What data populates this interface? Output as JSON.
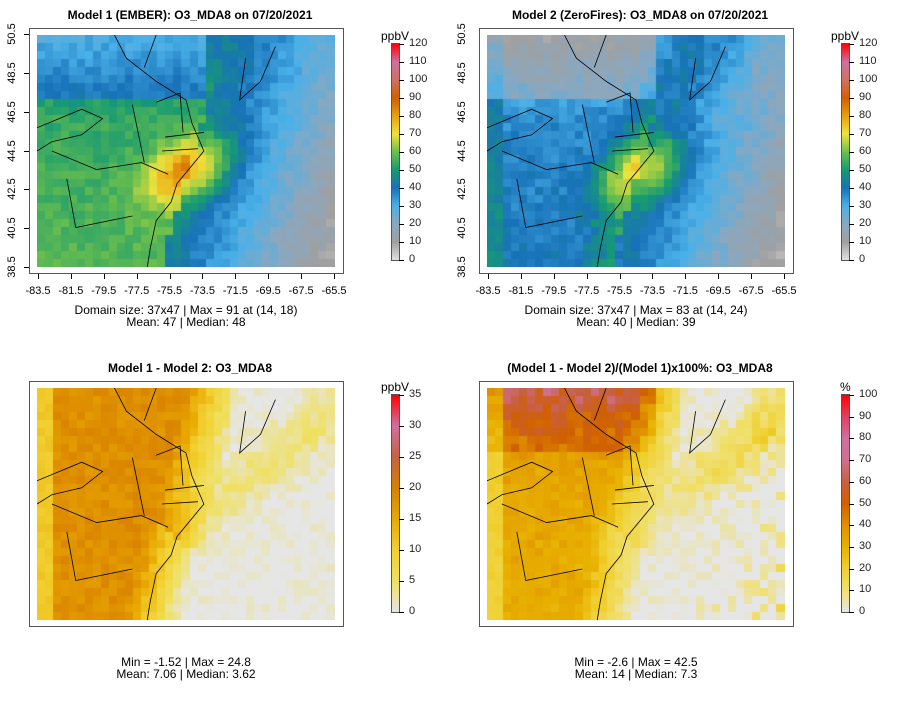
{
  "panels": [
    {
      "title": "Model 1 (EMBER): O3_MDA8 on 07/20/2021",
      "unit": "ppbV",
      "kind": "m1",
      "colorbar": {
        "ticks": [
          "0",
          "10",
          "20",
          "30",
          "40",
          "50",
          "60",
          "70",
          "80",
          "90",
          "100",
          "110",
          "120"
        ],
        "max": 120
      },
      "stats": [
        "Domain size: 37x47 | Max = 91 at (14, 18)",
        "Mean: 47 |  Median: 48"
      ],
      "axes": true
    },
    {
      "title": "Model 2 (ZeroFires): O3_MDA8 on 07/20/2021",
      "unit": "ppbV",
      "kind": "m2",
      "colorbar": {
        "ticks": [
          "0",
          "10",
          "20",
          "30",
          "40",
          "50",
          "60",
          "70",
          "80",
          "90",
          "100",
          "110",
          "120"
        ],
        "max": 120
      },
      "stats": [
        "Domain size: 37x47 | Max = 83 at (14, 24)",
        "Mean: 40 |  Median: 39"
      ],
      "axes": true
    },
    {
      "title": "Model 1 - Model 2: O3_MDA8",
      "unit": "ppbV",
      "kind": "diff",
      "colorbar": {
        "ticks": [
          "0",
          "5",
          "10",
          "15",
          "20",
          "25",
          "30",
          "35"
        ],
        "max": 35
      },
      "stats": [
        "Min = -1.52 | Max = 24.8",
        "Mean: 7.06 |  Median: 3.62"
      ],
      "axes": false
    },
    {
      "title": "(Model 1 - Model 2)/(Model 1)x100%: O3_MDA8",
      "unit": "%",
      "kind": "pct",
      "colorbar": {
        "ticks": [
          "0",
          "10",
          "20",
          "30",
          "40",
          "50",
          "60",
          "70",
          "80",
          "90",
          "100"
        ],
        "max": 100
      },
      "stats": [
        "Min = -2.6 | Max = 42.5",
        "Mean: 14 |  Median: 7.3"
      ],
      "axes": false
    }
  ],
  "axes": {
    "x_ticks": [
      "-83.5",
      "-81.5",
      "-79.5",
      "-77.5",
      "-75.5",
      "-73.5",
      "-71.5",
      "-69.5",
      "-67.5",
      "-65.5"
    ],
    "y_ticks": [
      "38.5",
      "40.5",
      "42.5",
      "44.5",
      "46.5",
      "48.5",
      "50.5"
    ]
  },
  "chart_data": [
    {
      "type": "heatmap",
      "title": "Model 1 (EMBER): O3_MDA8 on 07/20/2021",
      "legend_title": "ppbV",
      "zlim": [
        0,
        120
      ],
      "xlim": [
        -83.5,
        -65.5
      ],
      "ylim": [
        38.5,
        50.5
      ],
      "max": 91,
      "mean": 47,
      "median": 48
    },
    {
      "type": "heatmap",
      "title": "Model 2 (ZeroFires): O3_MDA8 on 07/20/2021",
      "legend_title": "ppbV",
      "zlim": [
        0,
        120
      ],
      "xlim": [
        -83.5,
        -65.5
      ],
      "ylim": [
        38.5,
        50.5
      ],
      "max": 83,
      "mean": 40,
      "median": 39
    },
    {
      "type": "heatmap",
      "title": "Model 1 - Model 2: O3_MDA8",
      "legend_title": "ppbV",
      "zlim": [
        0,
        35
      ],
      "min": -1.52,
      "max": 24.8,
      "mean": 7.06,
      "median": 3.62
    },
    {
      "type": "heatmap",
      "title": "(Model 1 - Model 2)/(Model 1)x100%: O3_MDA8",
      "legend_title": "%",
      "zlim": [
        0,
        100
      ],
      "min": -2.6,
      "max": 42.5,
      "mean": 14,
      "median": 7.3
    }
  ],
  "colormaps": {
    "ppb": [
      "#e0e0e0",
      "#a0a0a0",
      "#8aa8c0",
      "#4ab0e8",
      "#1872b8",
      "#179a72",
      "#6cbf4c",
      "#f0e23c",
      "#e8a010",
      "#d06000",
      "#d07060",
      "#d070a0",
      "#ff0000"
    ],
    "diff": [
      "#e6e6e6",
      "#f0e060",
      "#f2d030",
      "#e8a800",
      "#d88000",
      "#c86040",
      "#d070a0",
      "#ff0000"
    ],
    "pct": [
      "#e6e6e6",
      "#f0e070",
      "#f0d030",
      "#e8b000",
      "#e09000",
      "#d06000",
      "#c86040",
      "#d07090",
      "#d070a0",
      "#e04060",
      "#ff0000"
    ]
  }
}
